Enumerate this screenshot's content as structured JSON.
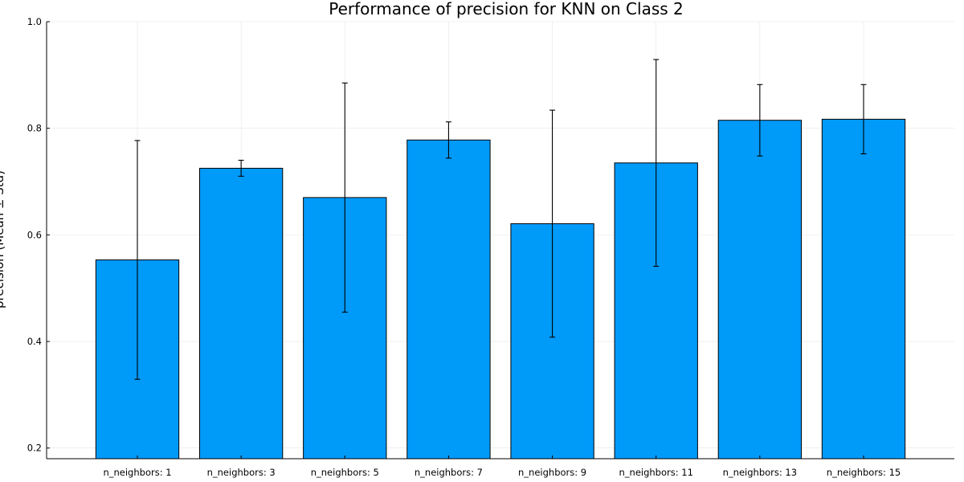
{
  "chart_data": {
    "type": "bar",
    "title": "Performance of precision for KNN on Class 2",
    "xlabel": "",
    "ylabel": "precision (Mean ± Std)",
    "categories": [
      "n_neighbors: 1",
      "n_neighbors: 3",
      "n_neighbors: 5",
      "n_neighbors: 7",
      "n_neighbors: 9",
      "n_neighbors: 11",
      "n_neighbors: 13",
      "n_neighbors: 15"
    ],
    "values": [
      0.553,
      0.725,
      0.67,
      0.778,
      0.621,
      0.735,
      0.815,
      0.817
    ],
    "errors": [
      0.224,
      0.015,
      0.215,
      0.034,
      0.213,
      0.194,
      0.067,
      0.065
    ],
    "ylim": [
      0.18,
      1.0
    ],
    "yticks": [
      0.2,
      0.4,
      0.6,
      0.8,
      1.0
    ],
    "ytick_labels": [
      "0.2",
      "0.4",
      "0.6",
      "0.8",
      "1.0"
    ],
    "grid": true,
    "legend": "none",
    "bar_color": "#009af9"
  }
}
